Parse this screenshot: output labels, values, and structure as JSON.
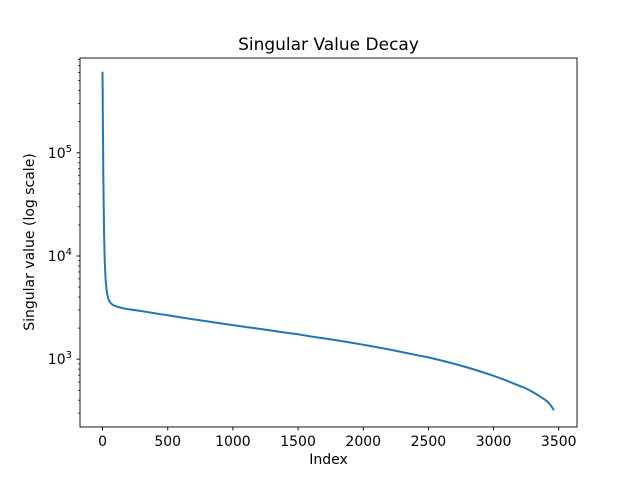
{
  "figure": {
    "background": "#ffffff",
    "text_color": "#000000"
  },
  "chart_data": {
    "type": "line",
    "title": "Singular Value Decay",
    "xlabel": "Index",
    "ylabel": "Singular value (log scale)",
    "xscale": "linear",
    "yscale": "log",
    "xlim": [
      -173,
      3640
    ],
    "ylim": [
      220,
      830000
    ],
    "xticks": [
      0,
      500,
      1000,
      1500,
      2000,
      2500,
      3000,
      3500
    ],
    "ytick_exponents": [
      3,
      4,
      5
    ],
    "ytick_base": "10",
    "grid": false,
    "legend": "none",
    "line_color": "#1f77b4",
    "line_width": 2,
    "axis_color": "#000000",
    "series": [
      {
        "name": "singular values",
        "x": [
          0,
          1,
          2,
          3,
          4,
          5,
          6,
          8,
          10,
          12,
          15,
          18,
          22,
          26,
          30,
          35,
          40,
          46,
          52,
          60,
          70,
          80,
          90,
          100,
          120,
          150,
          180,
          220,
          260,
          300,
          350,
          400,
          450,
          500,
          600,
          700,
          800,
          900,
          1000,
          1100,
          1200,
          1300,
          1400,
          1500,
          1600,
          1700,
          1800,
          1900,
          2000,
          2100,
          2200,
          2300,
          2400,
          2500,
          2600,
          2700,
          2800,
          2900,
          3000,
          3100,
          3200,
          3250,
          3300,
          3350,
          3400,
          3420,
          3440,
          3450,
          3460
        ],
        "y": [
          600000,
          400000,
          260000,
          175000,
          120000,
          85000,
          62000,
          36000,
          23000,
          16000,
          10800,
          8200,
          6400,
          5400,
          4800,
          4350,
          4050,
          3820,
          3660,
          3520,
          3420,
          3350,
          3300,
          3260,
          3200,
          3130,
          3080,
          3020,
          2970,
          2920,
          2850,
          2790,
          2720,
          2660,
          2540,
          2430,
          2330,
          2230,
          2140,
          2050,
          1970,
          1890,
          1810,
          1740,
          1660,
          1590,
          1520,
          1450,
          1380,
          1310,
          1240,
          1170,
          1100,
          1040,
          970,
          900,
          830,
          760,
          690,
          620,
          550,
          520,
          480,
          440,
          400,
          380,
          355,
          340,
          325
        ]
      }
    ]
  }
}
